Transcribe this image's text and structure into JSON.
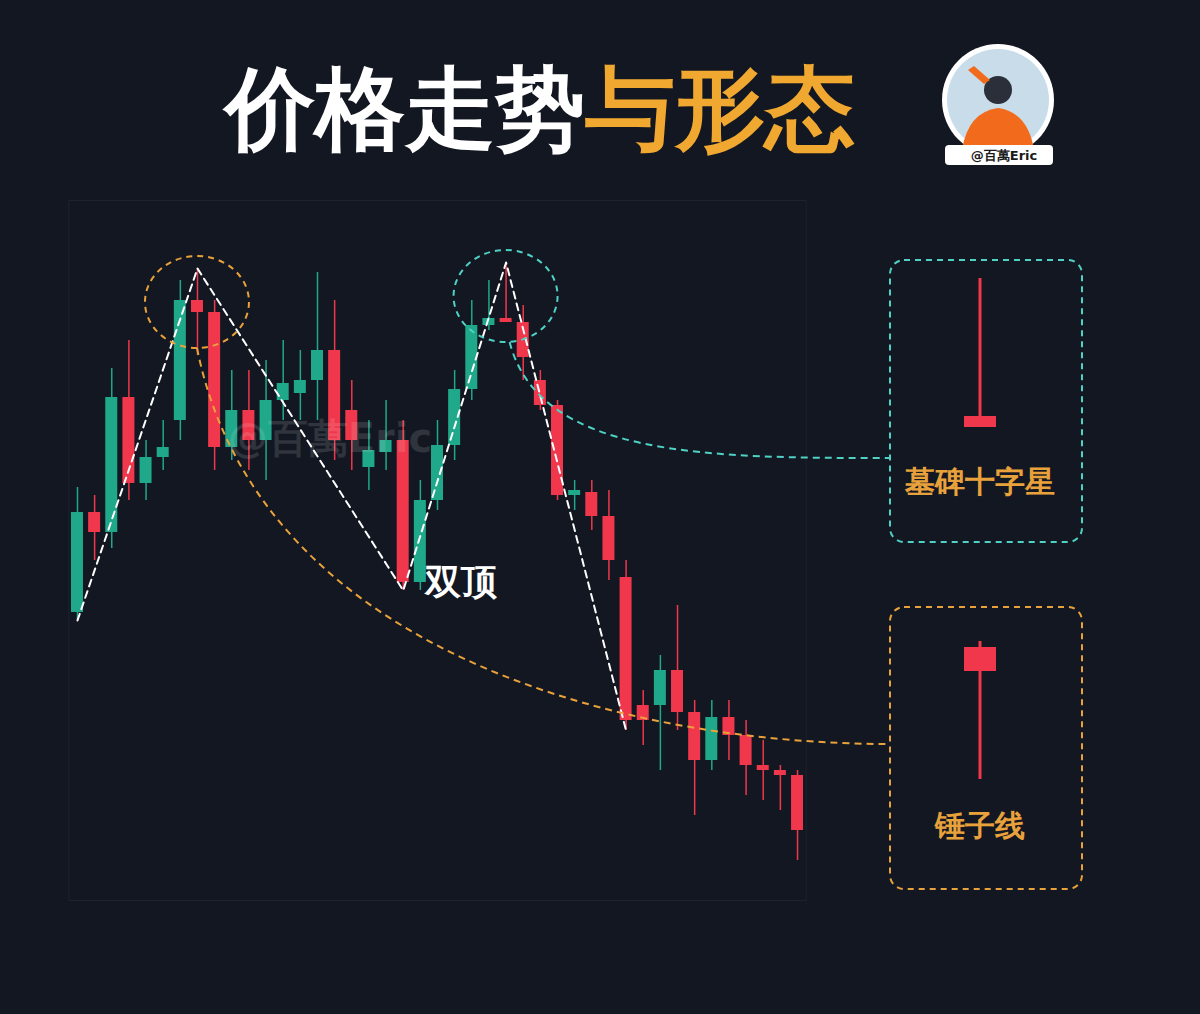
{
  "chart_data": {
    "type": "candlestick",
    "title": "价格走势与形态",
    "title_highlight": "与形态",
    "author": "@百萬Eric",
    "watermark": "@百萬Eric",
    "x": [
      1,
      2,
      3,
      4,
      5,
      6,
      7,
      8,
      9,
      10,
      11,
      12,
      13,
      14,
      15,
      16,
      17,
      18,
      19,
      20,
      21,
      22,
      23,
      24,
      25,
      26,
      27,
      28,
      29,
      30,
      31,
      32,
      33,
      34,
      35,
      36,
      37,
      38,
      39,
      40,
      41,
      42,
      43
    ],
    "open": [
      38.8,
      48.8,
      46.8,
      60.3,
      51.7,
      54.3,
      58.0,
      70.0,
      68.8,
      55.3,
      59.0,
      56.0,
      60.0,
      60.7,
      62.0,
      65.0,
      59.0,
      53.3,
      54.8,
      56.0,
      41.8,
      50.0,
      55.5,
      61.1,
      67.5,
      68.2,
      67.8,
      62.0,
      59.5,
      50.5,
      50.8,
      48.4,
      42.3,
      29.5,
      29.5,
      33.0,
      28.8,
      24.0,
      28.3,
      26.5,
      23.5,
      23.0,
      22.5
    ],
    "close": [
      48.8,
      46.8,
      60.3,
      51.7,
      54.3,
      55.3,
      70.0,
      68.8,
      55.3,
      59.0,
      56.0,
      60.0,
      61.7,
      62.0,
      65.0,
      56.0,
      56.0,
      55.0,
      56.0,
      41.8,
      50.0,
      55.5,
      61.1,
      67.5,
      68.2,
      67.8,
      64.3,
      59.5,
      50.5,
      51.0,
      48.4,
      44.0,
      28.0,
      28.0,
      33.0,
      28.8,
      24.0,
      28.3,
      26.5,
      23.5,
      23.0,
      22.5,
      17.0
    ],
    "high": [
      51.3,
      50.5,
      63.2,
      66.0,
      56.0,
      58.0,
      72.0,
      73.2,
      70.0,
      63.0,
      63.0,
      64.0,
      66.0,
      65.0,
      72.8,
      70.0,
      62.0,
      58.0,
      60.0,
      58.0,
      52.0,
      58.0,
      63.0,
      70.0,
      72.0,
      73.8,
      69.5,
      63.0,
      60.0,
      52.0,
      52.0,
      51.0,
      44.0,
      31.0,
      34.5,
      39.5,
      30.0,
      30.0,
      30.0,
      28.0,
      26.0,
      23.5,
      23.0
    ],
    "low": [
      38.0,
      44.0,
      45.2,
      50.0,
      50.0,
      53.0,
      56.0,
      64.5,
      53.0,
      54.0,
      53.0,
      52.0,
      58.0,
      58.0,
      58.0,
      54.0,
      53.0,
      51.0,
      53.0,
      41.0,
      41.0,
      49.0,
      54.0,
      60.0,
      67.0,
      67.8,
      62.0,
      59.0,
      50.0,
      49.0,
      47.0,
      42.0,
      27.0,
      25.5,
      23.0,
      27.0,
      18.5,
      23.0,
      24.0,
      20.5,
      20.0,
      19.0,
      14.0
    ],
    "colors": [
      "#1fa88a",
      "#f0374b",
      "#1fa88a",
      "#f0374b",
      "#1fa88a",
      "#1fa88a",
      "#1fa88a",
      "#f0374b",
      "#f0374b",
      "#1fa88a",
      "#f0374b",
      "#1fa88a",
      "#1fa88a",
      "#1fa88a",
      "#1fa88a",
      "#f0374b",
      "#f0374b",
      "#1fa88a",
      "#1fa88a",
      "#f0374b",
      "#1fa88a",
      "#1fa88a",
      "#1fa88a",
      "#1fa88a",
      "#1fa88a",
      "#f0374b",
      "#f0374b",
      "#f0374b",
      "#f0374b",
      "#1fa88a",
      "#f0374b",
      "#f0374b",
      "#f0374b",
      "#f0374b",
      "#1fa88a",
      "#f0374b",
      "#f0374b",
      "#1fa88a",
      "#f0374b",
      "#f0374b",
      "#f0374b",
      "#f0374b",
      "#f0374b"
    ],
    "xlim": [
      0.5,
      43.5
    ],
    "ylim": [
      10,
      80
    ],
    "tick_labels": false,
    "grid": false,
    "pattern": {
      "label": "双顶",
      "x": [
        1,
        8,
        20,
        26,
        33
      ],
      "y": [
        38.0,
        73.2,
        41.0,
        73.8,
        27.0
      ]
    },
    "callouts": [
      {
        "label": "墓碑十字星",
        "x": 26,
        "color": "#4fd1c5"
      },
      {
        "label": "锤子线",
        "x": 8,
        "color": "#e9a23b"
      }
    ]
  }
}
